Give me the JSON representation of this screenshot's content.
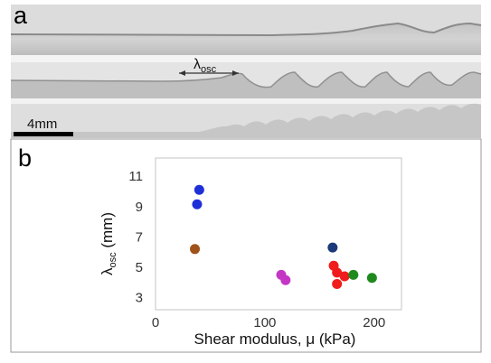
{
  "panel_a": {
    "label": "a",
    "wavelength_label": "λ",
    "wavelength_subscript": "osc",
    "scalebar_label": "4mm"
  },
  "panel_b": {
    "label": "b"
  },
  "colors": {
    "blue": "#1f2fd8",
    "brown": "#a0521a",
    "magenta": "#c436c4",
    "navy": "#1c3a7a",
    "red": "#f01c1c",
    "green": "#1e8a1e"
  },
  "chart_data": {
    "type": "scatter",
    "xlabel": "Shear modulus, μ (kPa)",
    "ylabel_main": "λ",
    "ylabel_sub": "osc",
    "ylabel_unit": " (mm)",
    "xlim": [
      0,
      225
    ],
    "ylim": [
      2.2,
      12.2
    ],
    "xticks": [
      0,
      100,
      200
    ],
    "yticks": [
      3,
      5,
      7,
      9,
      11
    ],
    "grid": false,
    "series": [
      {
        "color": "blue",
        "points": [
          {
            "x": 40,
            "y": 10.1
          },
          {
            "x": 38,
            "y": 9.15
          }
        ]
      },
      {
        "color": "brown",
        "points": [
          {
            "x": 36,
            "y": 6.2
          }
        ]
      },
      {
        "color": "magenta",
        "points": [
          {
            "x": 115,
            "y": 4.5
          },
          {
            "x": 119,
            "y": 4.15
          }
        ]
      },
      {
        "color": "navy",
        "points": [
          {
            "x": 162,
            "y": 6.3
          }
        ]
      },
      {
        "color": "red",
        "points": [
          {
            "x": 163,
            "y": 5.1
          },
          {
            "x": 166,
            "y": 4.65
          },
          {
            "x": 173,
            "y": 4.4
          },
          {
            "x": 166,
            "y": 3.9
          }
        ]
      },
      {
        "color": "green",
        "points": [
          {
            "x": 181,
            "y": 4.5
          },
          {
            "x": 198,
            "y": 4.3
          }
        ]
      }
    ]
  }
}
